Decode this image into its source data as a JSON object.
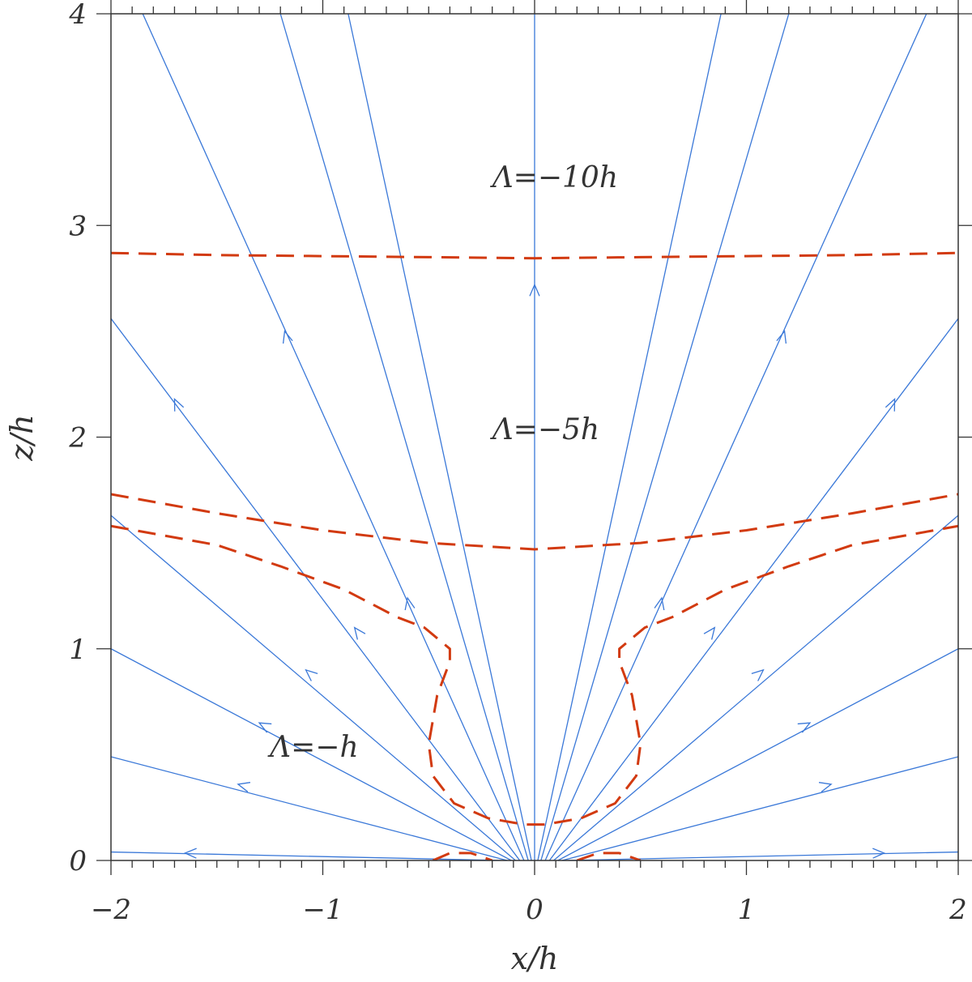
{
  "chart_data": {
    "type": "line",
    "xlabel": "x/h",
    "ylabel": "z/h",
    "xlim": [
      -2,
      2
    ],
    "ylim": [
      0,
      4
    ],
    "x_ticks": [
      -2,
      -1,
      0,
      1,
      2
    ],
    "y_ticks": [
      0,
      1,
      2,
      3,
      4
    ],
    "x_tick_labels": [
      "−2",
      "−1",
      "0",
      "1",
      "2"
    ],
    "y_tick_labels": [
      "0",
      "1",
      "2",
      "3",
      "4"
    ],
    "grid": false,
    "colors": {
      "field_lines": "#3a78d8",
      "contours": "#d23a10",
      "axes": "#333333"
    },
    "field_lines": {
      "description_free": true,
      "origin_x": [
        -0.2,
        -0.18,
        -0.14,
        -0.1,
        -0.06,
        -0.02,
        0,
        0.02,
        0.06,
        0.1,
        0.14,
        0.18,
        0.2
      ],
      "lines": [
        {
          "points": [
            [
              -0.15,
              0
            ],
            [
              -2.0,
              0.04
            ]
          ],
          "arrow_at": [
            -1.65,
            0.035
          ],
          "direction": "out"
        },
        {
          "points": [
            [
              -0.13,
              0
            ],
            [
              -2.0,
              0.49
            ]
          ],
          "arrow_at": [
            -1.4,
            0.36
          ],
          "direction": "out"
        },
        {
          "points": [
            [
              -0.11,
              0
            ],
            [
              -2.0,
              1.0
            ]
          ],
          "arrow_at": [
            -1.3,
            0.65
          ],
          "direction": "out"
        },
        {
          "points": [
            [
              -0.09,
              0
            ],
            [
              -2.0,
              1.63
            ]
          ],
          "arrow_at": [
            -1.08,
            0.9
          ],
          "direction": "out"
        },
        {
          "points": [
            [
              -0.07,
              0
            ],
            [
              -2.0,
              2.56
            ]
          ],
          "arrow_at": [
            -0.85,
            1.1
          ],
          "direction": "out"
        },
        {
          "points": [
            [
              -0.05,
              0
            ],
            [
              -1.85,
              4.0
            ]
          ],
          "arrow_at": [
            -1.7,
            2.18
          ],
          "direction": "out"
        },
        {
          "points": [
            [
              -0.03,
              0
            ],
            [
              -1.2,
              4.0
            ]
          ],
          "arrow_at": [
            -1.18,
            2.5
          ],
          "direction": "out"
        },
        {
          "points": [
            [
              -0.015,
              0
            ],
            [
              -0.88,
              4.0
            ]
          ],
          "arrow_at": [
            -0.6,
            1.24
          ],
          "direction": "out"
        },
        {
          "points": [
            [
              0,
              0
            ],
            [
              0,
              4.0
            ]
          ],
          "arrow_at": [
            0,
            2.72
          ],
          "direction": "out"
        },
        {
          "points": [
            [
              0.015,
              0
            ],
            [
              0.88,
              4.0
            ]
          ],
          "arrow_at": [
            0.6,
            1.24
          ],
          "direction": "out"
        },
        {
          "points": [
            [
              0.03,
              0
            ],
            [
              1.2,
              4.0
            ]
          ],
          "arrow_at": [
            1.18,
            2.5
          ],
          "direction": "out"
        },
        {
          "points": [
            [
              0.05,
              0
            ],
            [
              1.85,
              4.0
            ]
          ],
          "arrow_at": [
            1.7,
            2.18
          ],
          "direction": "out"
        },
        {
          "points": [
            [
              0.07,
              0
            ],
            [
              2.0,
              2.56
            ]
          ],
          "arrow_at": [
            0.85,
            1.1
          ],
          "direction": "out"
        },
        {
          "points": [
            [
              0.09,
              0
            ],
            [
              2.0,
              1.63
            ]
          ],
          "arrow_at": [
            1.08,
            0.9
          ],
          "direction": "out"
        },
        {
          "points": [
            [
              0.11,
              0
            ],
            [
              2.0,
              1.0
            ]
          ],
          "arrow_at": [
            1.3,
            0.65
          ],
          "direction": "out"
        },
        {
          "points": [
            [
              0.13,
              0
            ],
            [
              2.0,
              0.49
            ]
          ],
          "arrow_at": [
            1.4,
            0.36
          ],
          "direction": "out"
        },
        {
          "points": [
            [
              0.15,
              0
            ],
            [
              2.0,
              0.04
            ]
          ],
          "arrow_at": [
            1.65,
            0.035
          ],
          "direction": "out"
        }
      ]
    },
    "contours": [
      {
        "label": "Λ=−10h",
        "label_pos": [
          -0.2,
          3.18
        ],
        "points": [
          [
            -2.0,
            2.87
          ],
          [
            -1.5,
            2.86
          ],
          [
            -1.0,
            2.855
          ],
          [
            -0.5,
            2.85
          ],
          [
            0,
            2.845
          ],
          [
            0.5,
            2.85
          ],
          [
            1.0,
            2.855
          ],
          [
            1.5,
            2.86
          ],
          [
            2.0,
            2.87
          ]
        ]
      },
      {
        "label": "Λ=−5h",
        "label_pos": [
          -0.2,
          1.99
        ],
        "points": [
          [
            -2.0,
            1.73
          ],
          [
            -1.5,
            1.64
          ],
          [
            -1.0,
            1.56
          ],
          [
            -0.5,
            1.5
          ],
          [
            0,
            1.47
          ],
          [
            0.5,
            1.5
          ],
          [
            1.0,
            1.56
          ],
          [
            1.5,
            1.64
          ],
          [
            2.0,
            1.73
          ]
        ]
      },
      {
        "label": "Λ=−h",
        "label_pos": [
          -1.25,
          0.49
        ],
        "points": [
          [
            -2.0,
            1.58
          ],
          [
            -1.5,
            1.49
          ],
          [
            -1.2,
            1.39
          ],
          [
            -0.9,
            1.28
          ],
          [
            -0.65,
            1.15
          ],
          [
            -0.52,
            1.1
          ],
          [
            -0.4,
            1.0
          ],
          [
            -0.4,
            0.94
          ],
          [
            -0.46,
            0.78
          ],
          [
            -0.5,
            0.55
          ],
          [
            -0.48,
            0.4
          ],
          [
            -0.38,
            0.27
          ],
          [
            -0.22,
            0.2
          ],
          [
            -0.05,
            0.17
          ],
          [
            0.05,
            0.17
          ],
          [
            0.22,
            0.2
          ],
          [
            0.38,
            0.27
          ],
          [
            0.48,
            0.4
          ],
          [
            0.5,
            0.55
          ],
          [
            0.46,
            0.78
          ],
          [
            0.4,
            0.94
          ],
          [
            0.4,
            1.0
          ],
          [
            0.52,
            1.1
          ],
          [
            0.65,
            1.15
          ],
          [
            0.9,
            1.28
          ],
          [
            1.2,
            1.39
          ],
          [
            1.5,
            1.49
          ],
          [
            2.0,
            1.58
          ]
        ]
      },
      {
        "label": "",
        "points": [
          [
            -0.48,
            0.0
          ],
          [
            -0.4,
            0.035
          ],
          [
            -0.3,
            0.035
          ],
          [
            -0.2,
            0.0
          ]
        ]
      },
      {
        "label": "",
        "points": [
          [
            0.2,
            0.0
          ],
          [
            0.3,
            0.035
          ],
          [
            0.4,
            0.035
          ],
          [
            0.5,
            0.0
          ]
        ]
      }
    ]
  }
}
